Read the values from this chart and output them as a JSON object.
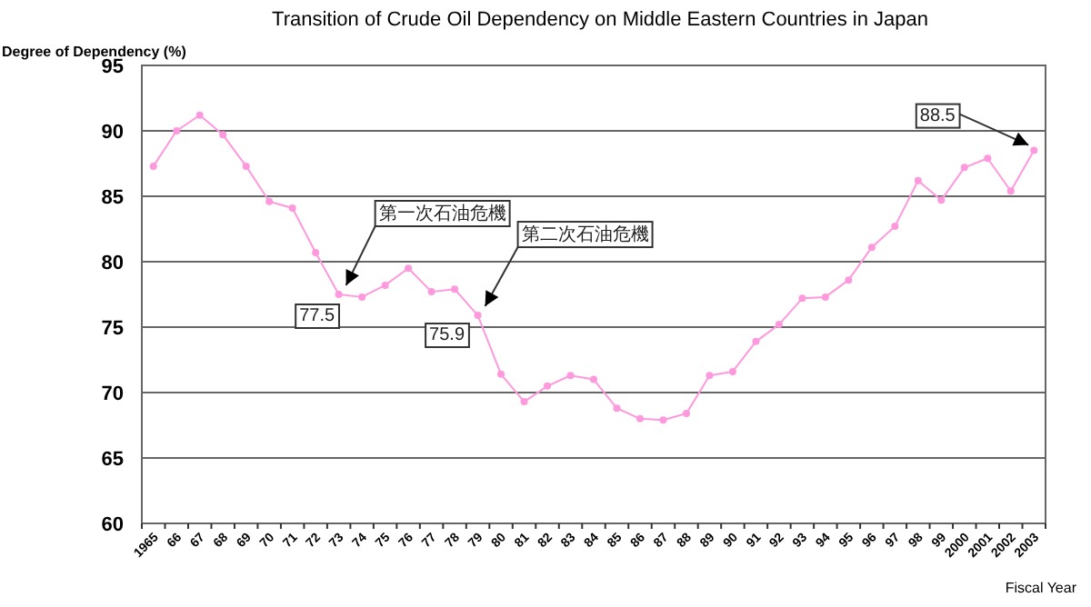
{
  "chart_data": {
    "type": "line",
    "title": "Transition of Crude Oil Dependency on Middle Eastern Countries in Japan",
    "xlabel": "Fiscal Year",
    "ylabel": "Degree of Dependency (%)",
    "categories": [
      "1965",
      "66",
      "67",
      "68",
      "69",
      "70",
      "71",
      "72",
      "73",
      "74",
      "75",
      "76",
      "77",
      "78",
      "79",
      "80",
      "81",
      "82",
      "83",
      "84",
      "85",
      "86",
      "87",
      "88",
      "89",
      "90",
      "91",
      "92",
      "93",
      "94",
      "95",
      "96",
      "97",
      "98",
      "99",
      "2000",
      "2001",
      "2002",
      "2003"
    ],
    "series": [
      {
        "color": "#ff99dd",
        "values": [
          87.3,
          90.0,
          91.2,
          89.7,
          87.3,
          84.6,
          84.1,
          80.7,
          77.5,
          77.3,
          78.2,
          79.5,
          77.7,
          77.9,
          75.9,
          71.4,
          69.3,
          70.5,
          71.3,
          71.0,
          68.8,
          68.0,
          67.9,
          68.4,
          71.3,
          71.6,
          73.9,
          75.2,
          77.2,
          77.3,
          78.6,
          81.1,
          82.7,
          86.2,
          84.7,
          87.2,
          87.9,
          85.4,
          88.5
        ]
      }
    ],
    "ylim": [
      60,
      95
    ],
    "yticks": [
      60,
      65,
      70,
      75,
      80,
      85,
      90,
      95
    ],
    "grid": "y",
    "marker": "circle",
    "annotations": [
      {
        "text": "第一次石油危機",
        "x": "73",
        "y": 77.5
      },
      {
        "text": "77.5",
        "x": "73",
        "y": 77.5
      },
      {
        "text": "第二次石油危機",
        "x": "79",
        "y": 75.9
      },
      {
        "text": "75.9",
        "x": "79",
        "y": 75.9
      },
      {
        "text": "88.5",
        "x": "2003",
        "y": 88.5
      }
    ]
  }
}
